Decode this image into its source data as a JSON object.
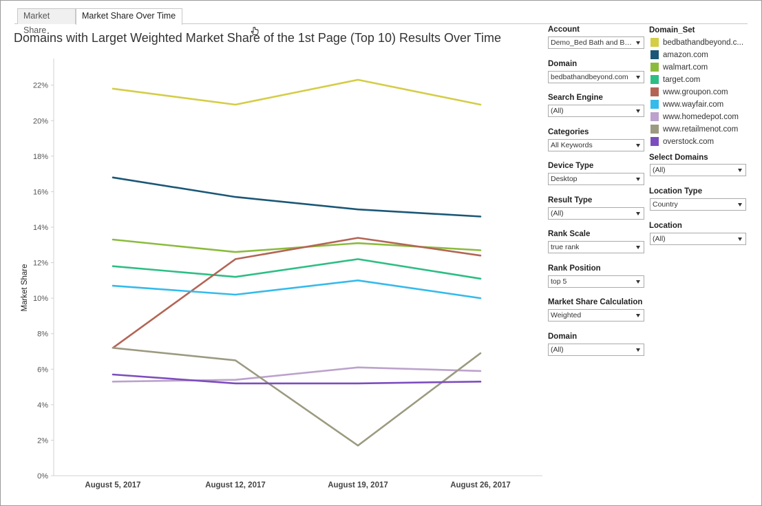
{
  "tabs": [
    {
      "label": "Market Share",
      "active": false
    },
    {
      "label": "Market Share Over Time",
      "active": true
    }
  ],
  "title": "Domains with Larget Weighted Market Share of the 1st Page (Top 10) Results Over Time",
  "chart_data": {
    "type": "line",
    "title": "Domains with Larget Weighted Market Share of the 1st Page (Top 10) Results Over Time",
    "xlabel": "",
    "ylabel": "Market Share",
    "categories": [
      "August 5, 2017",
      "August 12, 2017",
      "August 19, 2017",
      "August 26, 2017"
    ],
    "ylim": [
      0,
      23.5
    ],
    "y_ticks": [
      "0%",
      "2%",
      "4%",
      "6%",
      "8%",
      "10%",
      "12%",
      "14%",
      "16%",
      "18%",
      "20%",
      "22%"
    ],
    "y_tick_values": [
      0,
      2,
      4,
      6,
      8,
      10,
      12,
      14,
      16,
      18,
      20,
      22
    ],
    "grid": false,
    "legend_position": "right",
    "series": [
      {
        "name": "bedbathandbeyond.com",
        "color": "#d4cd46",
        "values": [
          21.8,
          20.9,
          22.3,
          20.9
        ]
      },
      {
        "name": "amazon.com",
        "color": "#1b5776",
        "values": [
          16.8,
          15.7,
          15.0,
          14.6
        ]
      },
      {
        "name": "walmart.com",
        "color": "#8bbb3d",
        "values": [
          13.3,
          12.6,
          13.1,
          12.7
        ]
      },
      {
        "name": "target.com",
        "color": "#2dbe85",
        "values": [
          11.8,
          11.2,
          12.2,
          11.1
        ]
      },
      {
        "name": "www.groupon.com",
        "color": "#b36555",
        "values": [
          7.2,
          12.2,
          13.4,
          12.4
        ]
      },
      {
        "name": "www.wayfair.com",
        "color": "#35baeb",
        "values": [
          10.7,
          10.2,
          11.0,
          10.0
        ]
      },
      {
        "name": "www.homedepot.com",
        "color": "#bca2cc",
        "values": [
          5.3,
          5.4,
          6.1,
          5.9
        ]
      },
      {
        "name": "www.retailmenot.com",
        "color": "#9c9a80",
        "values": [
          7.2,
          6.5,
          1.7,
          6.9
        ]
      },
      {
        "name": "overstock.com",
        "color": "#7d4dbd",
        "values": [
          5.7,
          5.2,
          5.2,
          5.3
        ]
      }
    ]
  },
  "filters": [
    {
      "label": "Account",
      "value": "Demo_Bed Bath and Be..."
    },
    {
      "label": "Domain",
      "value": "bedbathandbeyond.com"
    },
    {
      "label": "Search Engine",
      "value": "(All)"
    },
    {
      "label": "Categories",
      "value": "All Keywords"
    },
    {
      "label": "Device Type",
      "value": "Desktop"
    },
    {
      "label": "Result Type",
      "value": "(All)"
    },
    {
      "label": "Rank Scale",
      "value": "true rank"
    },
    {
      "label": "Rank Position",
      "value": "top 5"
    },
    {
      "label": "Market Share Calculation",
      "value": "Weighted"
    },
    {
      "label": "Domain",
      "value": "(All)"
    }
  ],
  "legend": {
    "title": "Domain_Set",
    "items": [
      {
        "label": "bedbathandbeyond.c...",
        "color": "#d4cd46"
      },
      {
        "label": "amazon.com",
        "color": "#1b5776"
      },
      {
        "label": "walmart.com",
        "color": "#8bbb3d"
      },
      {
        "label": "target.com",
        "color": "#2dbe85"
      },
      {
        "label": "www.groupon.com",
        "color": "#b36555"
      },
      {
        "label": "www.wayfair.com",
        "color": "#35baeb"
      },
      {
        "label": "www.homedepot.com",
        "color": "#bca2cc"
      },
      {
        "label": "www.retailmenot.com",
        "color": "#9c9a80"
      },
      {
        "label": "overstock.com",
        "color": "#7d4dbd"
      }
    ]
  },
  "right_filters": [
    {
      "label": "Select Domains",
      "value": "(All)"
    },
    {
      "label": "Location Type",
      "value": "Country"
    },
    {
      "label": "Location",
      "value": "(All)"
    }
  ]
}
